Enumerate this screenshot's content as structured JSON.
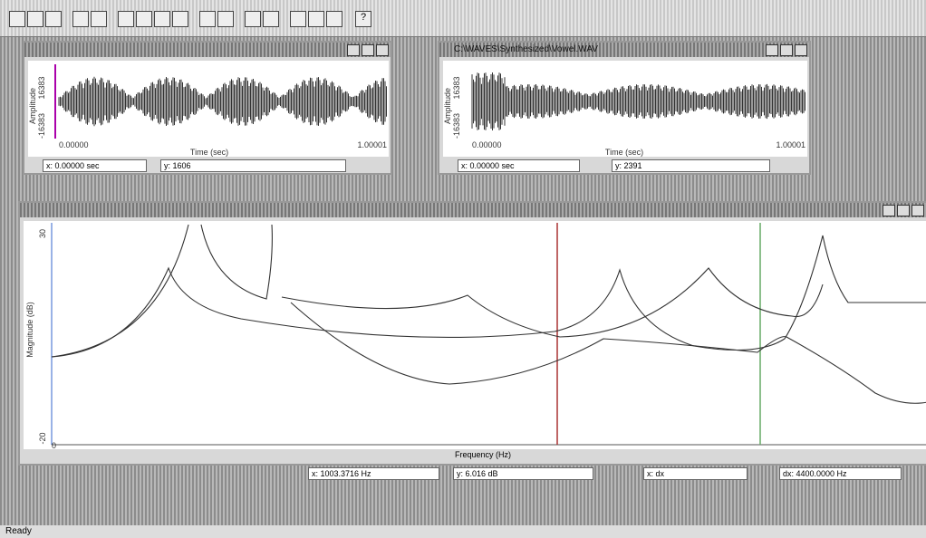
{
  "app": {
    "status_bar": "Ready",
    "toolbar_help": "?"
  },
  "windows": [
    {
      "title": "",
      "y_label": "Amplitude",
      "y_max": "16383",
      "y_min": "-16383",
      "x_min": "0.00000",
      "x_max": "1.00001",
      "x_label": "Time (sec)",
      "status_x": "x: 0.00000 sec",
      "status_y": "y: 1606"
    },
    {
      "title": "C:\\WAVES\\Synthesized\\Vowel.WAV",
      "y_label": "Amplitude",
      "y_max": "16383",
      "y_min": "-16383",
      "x_min": "0.00000",
      "x_max": "1.00001",
      "x_label": "Time (sec)",
      "status_x": "x: 0.00000 sec",
      "status_y": "y: 2391"
    },
    {
      "title": "",
      "y_label": "Magnitude (dB)",
      "y_max": "30",
      "y_min": "-20",
      "x_min": "0",
      "x_label": "Frequency (Hz)",
      "status_x": "x: 1003.3716 Hz",
      "status_y": "y: 6.016 dB",
      "status_dx": "x: dx",
      "status_fx": "dx: 4400.0000 Hz"
    }
  ]
}
